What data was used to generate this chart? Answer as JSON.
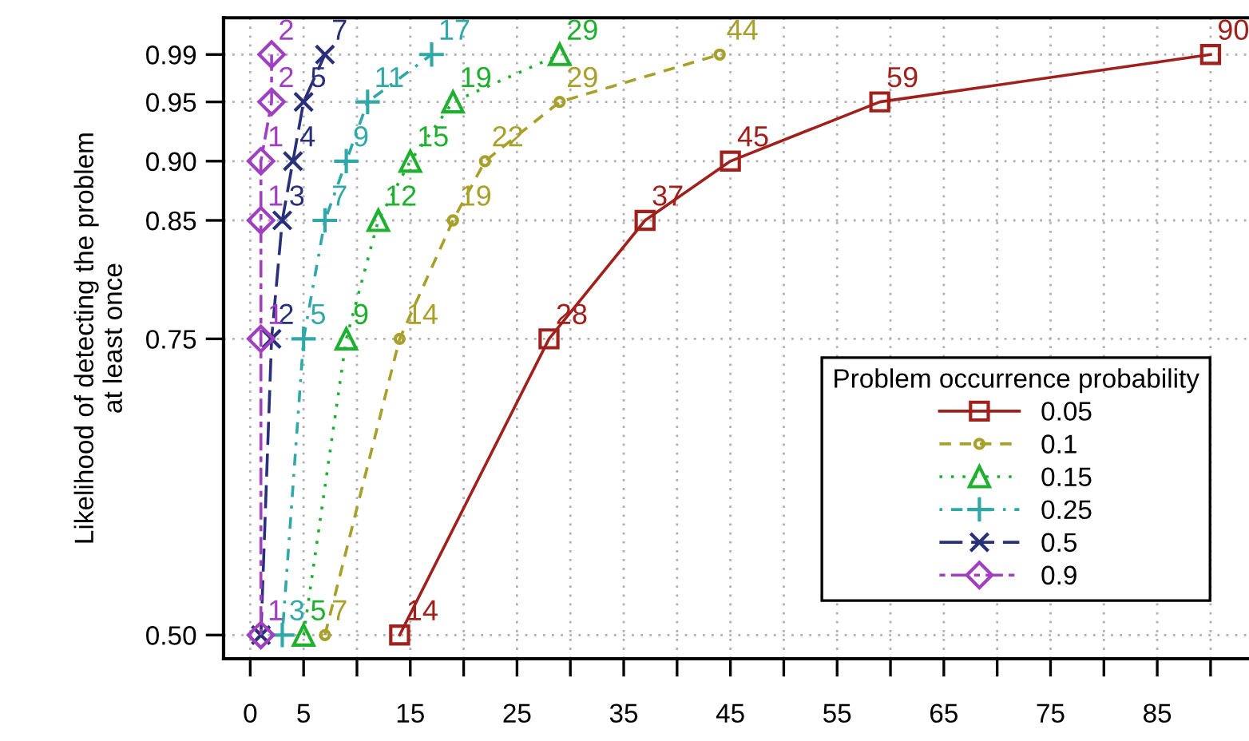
{
  "chart_data": {
    "type": "line",
    "ylabel": "Likelihood of detecting the problem\nat least once",
    "legend_title": "Problem occurrence probability",
    "series": [
      {
        "name": "0.05",
        "color": "#a0201c",
        "marker": "square",
        "line_style": "solid",
        "x": [
          14,
          28,
          37,
          45,
          59,
          90
        ],
        "values": [
          0.5,
          0.75,
          0.85,
          0.9,
          0.95,
          0.99
        ]
      },
      {
        "name": "0.1",
        "color": "#a8a02a",
        "marker": "circle",
        "line_style": "dashed",
        "x": [
          7,
          14,
          19,
          22,
          29,
          44
        ],
        "values": [
          0.5,
          0.75,
          0.85,
          0.9,
          0.95,
          0.99
        ]
      },
      {
        "name": "0.15",
        "color": "#20b030",
        "marker": "triangle",
        "line_style": "dotted",
        "x": [
          5,
          9,
          12,
          15,
          19,
          29
        ],
        "values": [
          0.5,
          0.75,
          0.85,
          0.9,
          0.95,
          0.99
        ]
      },
      {
        "name": "0.25",
        "color": "#30a8a8",
        "marker": "plus",
        "line_style": "dashdot",
        "x": [
          3,
          5,
          7,
          9,
          11,
          17
        ],
        "values": [
          0.5,
          0.75,
          0.85,
          0.9,
          0.95,
          0.99
        ]
      },
      {
        "name": "0.5",
        "color": "#28307a",
        "marker": "cross",
        "line_style": "longdash",
        "x": [
          1,
          2,
          3,
          4,
          5,
          7
        ],
        "values": [
          0.5,
          0.75,
          0.85,
          0.9,
          0.95,
          0.99
        ]
      },
      {
        "name": "0.9",
        "color": "#a040c0",
        "marker": "diamond",
        "line_style": "twodash",
        "x": [
          1,
          1,
          1,
          1,
          2,
          2
        ],
        "values": [
          0.5,
          0.75,
          0.85,
          0.9,
          0.95,
          0.99
        ]
      }
    ],
    "annotations": [
      {
        "text": "14",
        "x": 14,
        "y": 0.5
      },
      {
        "text": "28",
        "x": 28,
        "y": 0.75
      },
      {
        "text": "37",
        "x": 37,
        "y": 0.85
      },
      {
        "text": "45",
        "x": 45,
        "y": 0.9
      },
      {
        "text": "59",
        "x": 59,
        "y": 0.95
      },
      {
        "text": "90",
        "x": 90,
        "y": 0.99
      },
      {
        "text": "7",
        "x": 7,
        "y": 0.5
      },
      {
        "text": "14",
        "x": 14,
        "y": 0.75
      },
      {
        "text": "19",
        "x": 19,
        "y": 0.85
      },
      {
        "text": "22",
        "x": 22,
        "y": 0.9
      },
      {
        "text": "29",
        "x": 29,
        "y": 0.95
      },
      {
        "text": "44",
        "x": 44,
        "y": 0.99
      },
      {
        "text": "5",
        "x": 5,
        "y": 0.5
      },
      {
        "text": "9",
        "x": 9,
        "y": 0.75
      },
      {
        "text": "12",
        "x": 12,
        "y": 0.85
      },
      {
        "text": "15",
        "x": 15,
        "y": 0.9
      },
      {
        "text": "19",
        "x": 19,
        "y": 0.95
      },
      {
        "text": "29",
        "x": 29,
        "y": 0.99
      },
      {
        "text": "3",
        "x": 3,
        "y": 0.5
      },
      {
        "text": "5",
        "x": 5,
        "y": 0.75
      },
      {
        "text": "7",
        "x": 7,
        "y": 0.85
      },
      {
        "text": "9",
        "x": 9,
        "y": 0.9
      },
      {
        "text": "11",
        "x": 11,
        "y": 0.95
      },
      {
        "text": "17",
        "x": 17,
        "y": 0.99
      },
      {
        "text": "2",
        "x": 2,
        "y": 0.75
      },
      {
        "text": "3",
        "x": 3,
        "y": 0.85
      },
      {
        "text": "4",
        "x": 4,
        "y": 0.9
      },
      {
        "text": "5",
        "x": 5,
        "y": 0.95
      },
      {
        "text": "7",
        "x": 7,
        "y": 0.99
      },
      {
        "text": "1",
        "x": 1,
        "y": 0.5
      },
      {
        "text": "1",
        "x": 1,
        "y": 0.75
      },
      {
        "text": "1",
        "x": 1,
        "y": 0.85
      },
      {
        "text": "1",
        "x": 1,
        "y": 0.9
      },
      {
        "text": "2",
        "x": 2,
        "y": 0.95
      },
      {
        "text": "2",
        "x": 2,
        "y": 0.99
      }
    ],
    "xlim": [
      -2.5,
      93.6
    ],
    "ylim": [
      0.48,
      1.021
    ],
    "xticks": [
      0,
      5,
      {
        "value": 10,
        "label": null
      },
      15,
      {
        "value": 20,
        "label": null
      },
      25,
      {
        "value": 30,
        "label": null
      },
      35,
      {
        "value": 40,
        "label": null
      },
      45,
      {
        "value": 50,
        "label": null
      },
      55,
      {
        "value": 60,
        "label": null
      },
      65,
      {
        "value": 70,
        "label": null
      },
      75,
      {
        "value": 80,
        "label": null
      },
      85,
      {
        "value": 90,
        "label": null
      }
    ],
    "yticks": [
      {
        "value": 0.5,
        "label": "0.50"
      },
      {
        "value": 0.75,
        "label": "0.75"
      },
      {
        "value": 0.85,
        "label": "0.85"
      },
      {
        "value": 0.9,
        "label": "0.90"
      },
      {
        "value": 0.95,
        "label": "0.95"
      },
      {
        "value": 0.99,
        "label": "0.99"
      }
    ],
    "grid": true,
    "legend": "bottom right"
  }
}
